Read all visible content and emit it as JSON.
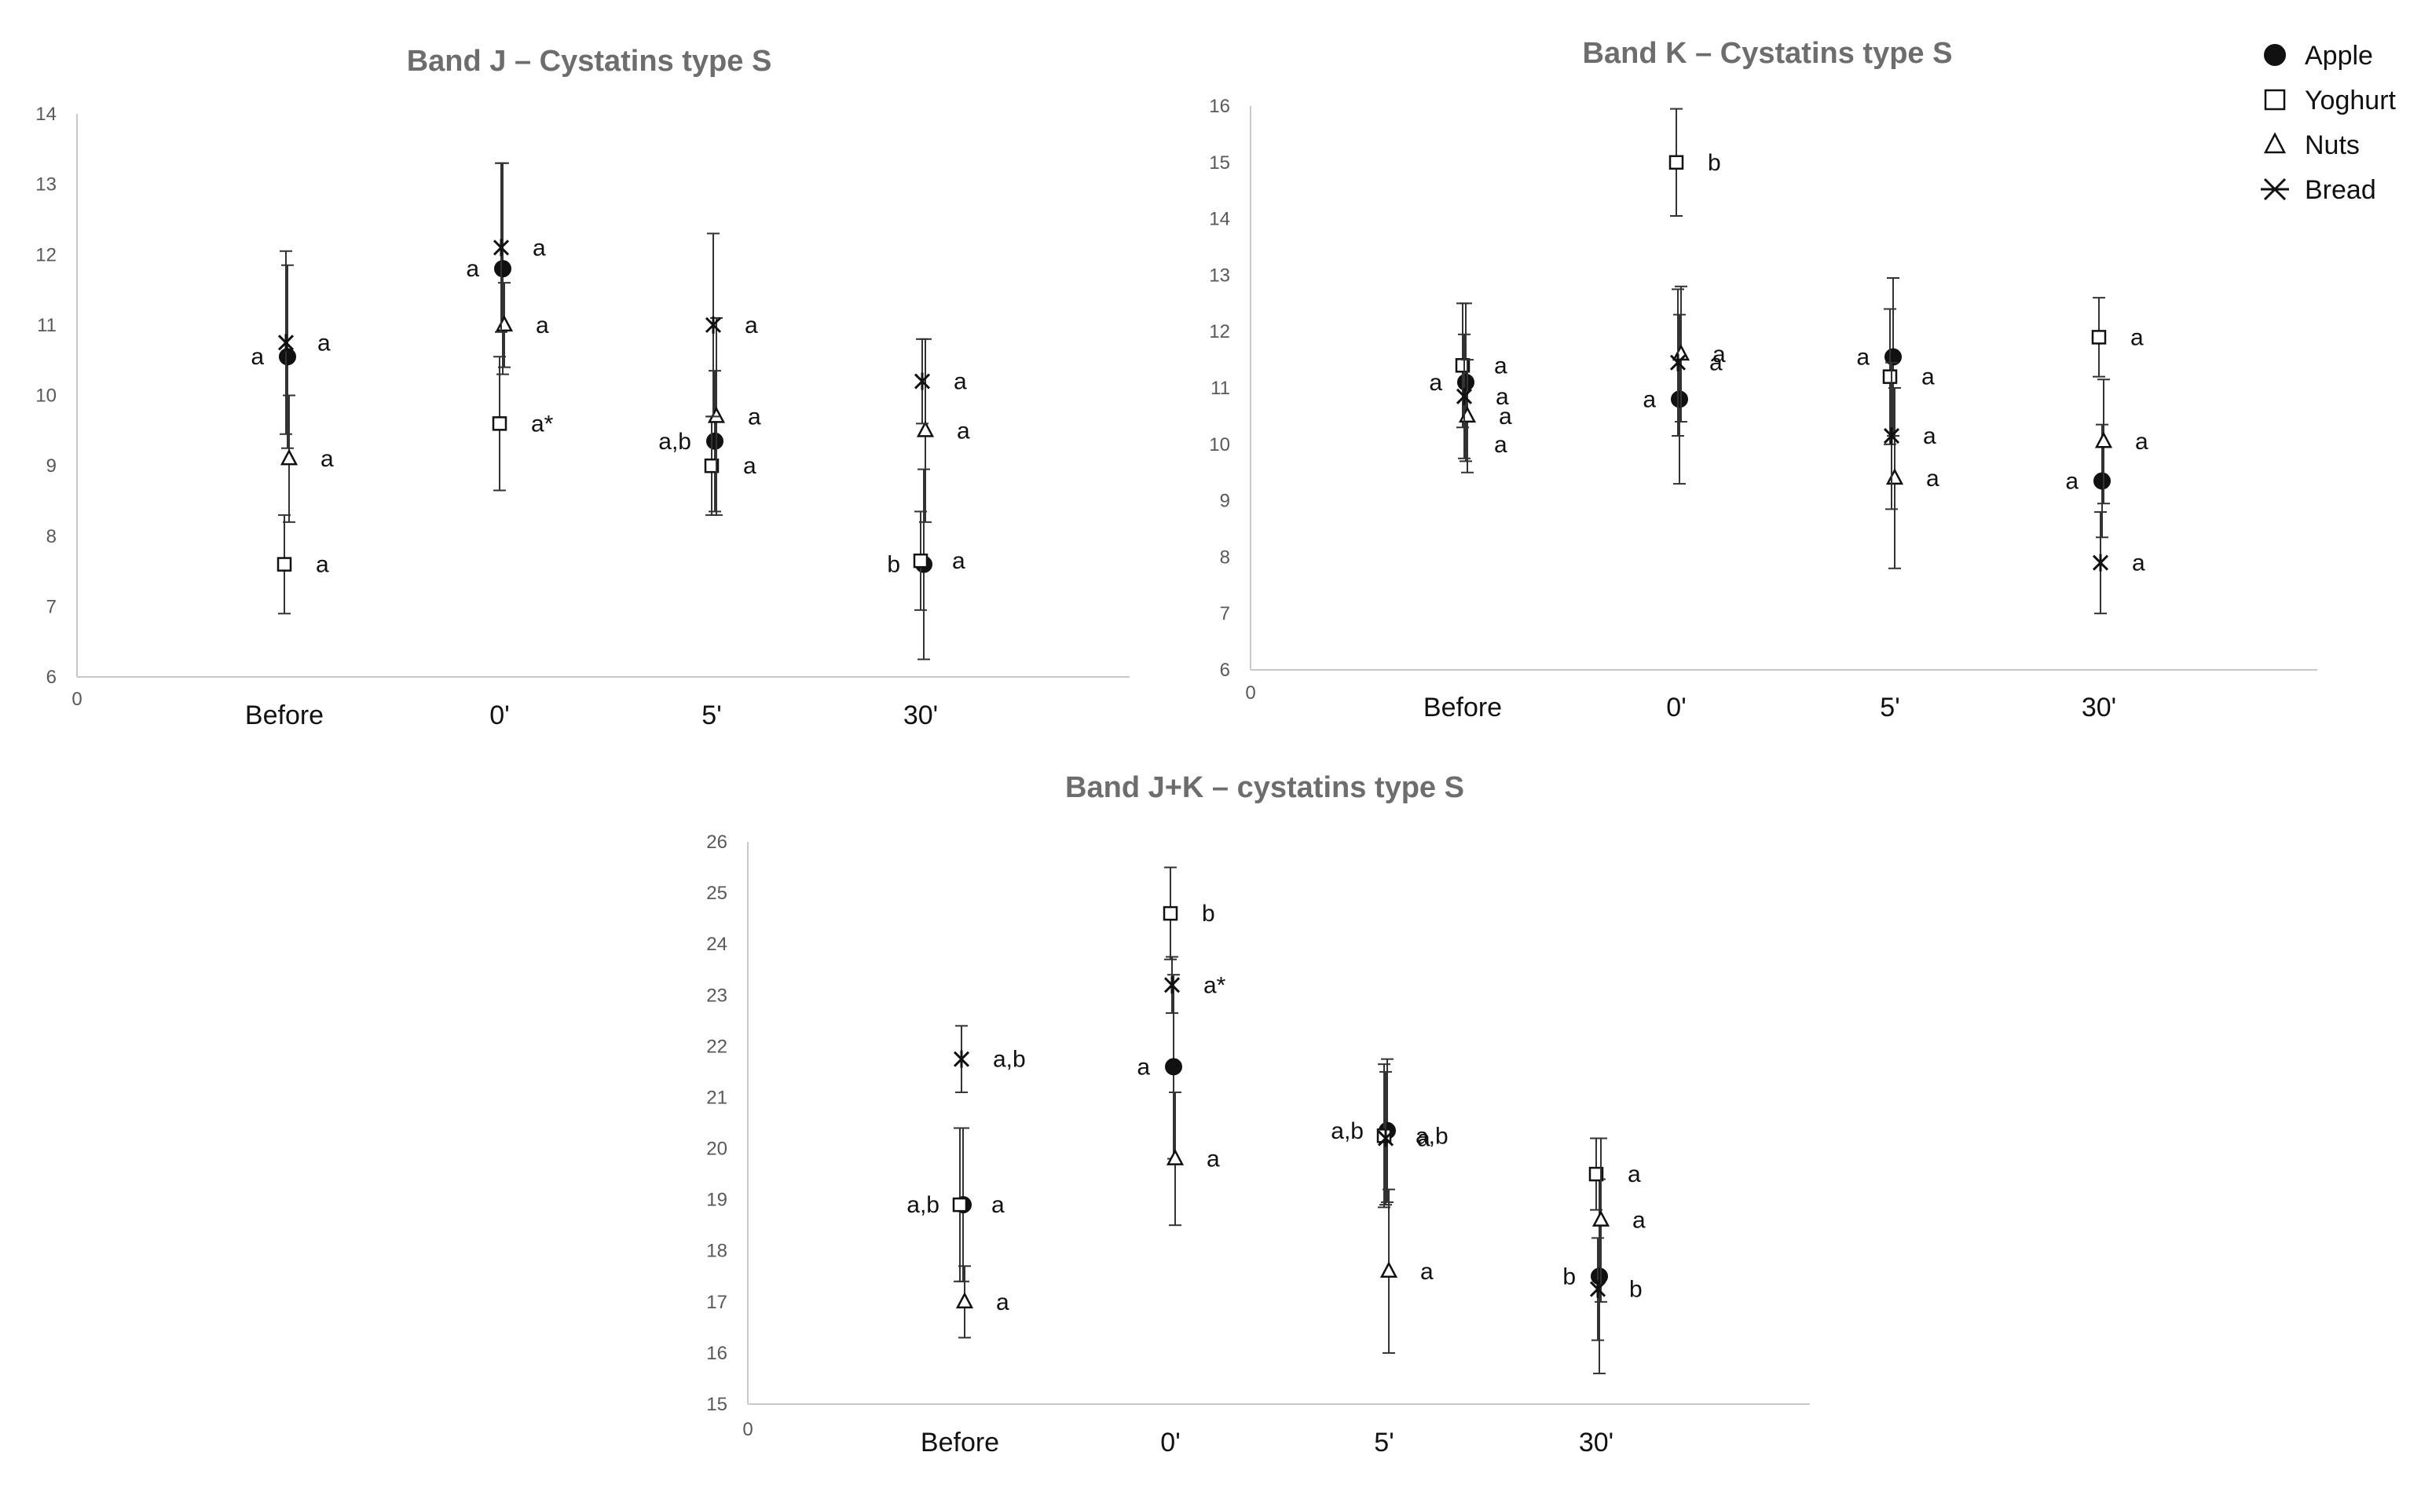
{
  "legend": {
    "items": [
      {
        "name": "Apple",
        "marker": "filled-circle"
      },
      {
        "name": "Yoghurt",
        "marker": "open-square"
      },
      {
        "name": "Nuts",
        "marker": "open-triangle"
      },
      {
        "name": "Bread",
        "marker": "cross"
      }
    ]
  },
  "chart_data": [
    {
      "type": "scatter",
      "id": "band-j",
      "title": "Band J – Cystatins type S",
      "origin_label": "0",
      "categories": [
        "Before",
        "0'",
        "5'",
        "30'"
      ],
      "ylim": [
        6,
        14
      ],
      "yticks": [
        6,
        7,
        8,
        9,
        10,
        11,
        12,
        13,
        14
      ],
      "series": [
        {
          "name": "Apple",
          "marker": "filled-circle",
          "values": [
            10.55,
            11.8,
            9.35,
            7.6
          ],
          "err": [
            1.3,
            1.5,
            1.0,
            1.35
          ],
          "labels": [
            "a",
            "a",
            "a,b",
            "b"
          ],
          "label_side": "left"
        },
        {
          "name": "Yoghurt",
          "marker": "open-square",
          "values": [
            7.6,
            9.6,
            9.0,
            7.65
          ],
          "err": [
            0.7,
            0.95,
            0.7,
            0.7
          ],
          "labels": [
            "a",
            "a*",
            "a",
            "a"
          ],
          "label_side": "right"
        },
        {
          "name": "Nuts",
          "marker": "open-triangle",
          "values": [
            9.1,
            11.0,
            9.7,
            9.5
          ],
          "err": [
            0.9,
            0.6,
            1.4,
            1.3
          ],
          "labels": [
            "a",
            "a",
            "a",
            "a"
          ],
          "label_side": "right"
        },
        {
          "name": "Bread",
          "marker": "cross",
          "values": [
            10.75,
            12.1,
            11.0,
            10.2
          ],
          "err": [
            1.3,
            1.2,
            1.3,
            0.6
          ],
          "labels": [
            "a",
            "a",
            "a",
            "a"
          ],
          "label_side": "right"
        }
      ]
    },
    {
      "type": "scatter",
      "id": "band-k",
      "title": "Band K – Cystatins type S",
      "origin_label": "0",
      "categories": [
        "Before",
        "0'",
        "5'",
        "30'"
      ],
      "ylim": [
        6,
        16
      ],
      "yticks": [
        6,
        7,
        8,
        9,
        10,
        11,
        12,
        13,
        14,
        15,
        16
      ],
      "series": [
        {
          "name": "Apple",
          "marker": "filled-circle",
          "values": [
            11.1,
            10.8,
            11.55,
            9.35
          ],
          "err": [
            1.4,
            1.5,
            1.4,
            1.0
          ],
          "labels": [
            "a",
            "a",
            "a",
            "a"
          ],
          "label_side": "left"
        },
        {
          "name": "Yoghurt",
          "marker": "open-square",
          "values": [
            11.4,
            15.0,
            11.2,
            11.9
          ],
          "err": [
            1.1,
            0.95,
            1.2,
            0.7
          ],
          "labels": [
            "a",
            "b",
            "a",
            "a"
          ],
          "label_side": "right"
        },
        {
          "name": "Nuts",
          "marker": "open-triangle",
          "values": [
            10.5,
            11.6,
            9.4,
            10.05
          ],
          "err": [
            1.0,
            1.2,
            1.6,
            1.1
          ],
          "labels": [
            "a",
            "a",
            "a",
            "a"
          ],
          "label_side": "right"
        },
        {
          "name": "Bread",
          "marker": "cross",
          "values": [
            10.85,
            11.45,
            10.15,
            7.9
          ],
          "err": [
            1.1,
            1.3,
            1.3,
            0.9
          ],
          "labels": [
            "a",
            "a",
            "a",
            "a"
          ],
          "label_side": "right"
        }
      ],
      "extra_labels": [
        {
          "category": "Before",
          "value": 10.0,
          "text": "a"
        }
      ]
    },
    {
      "type": "scatter",
      "id": "band-jk",
      "title": "Band J+K – cystatins type S",
      "origin_label": "0",
      "categories": [
        "Before",
        "0'",
        "5'",
        "30'"
      ],
      "ylim": [
        15,
        26
      ],
      "yticks": [
        15,
        16,
        17,
        18,
        19,
        20,
        21,
        22,
        23,
        24,
        25,
        26
      ],
      "series": [
        {
          "name": "Apple",
          "marker": "filled-circle",
          "values": [
            18.9,
            21.6,
            20.35,
            17.5
          ],
          "err": [
            1.5,
            1.8,
            1.4,
            1.9
          ],
          "labels": [
            "a,b",
            "a",
            "a,b",
            "b"
          ],
          "label_side": "left"
        },
        {
          "name": "Yoghurt",
          "marker": "open-square",
          "values": [
            18.9,
            24.6,
            20.25,
            19.5
          ],
          "err": [
            1.5,
            0.9,
            1.4,
            0.7
          ],
          "labels": [
            "a",
            "b",
            "a,b",
            "a"
          ],
          "label_side": "right"
        },
        {
          "name": "Nuts",
          "marker": "open-triangle",
          "values": [
            17.0,
            19.8,
            17.6,
            18.6
          ],
          "err": [
            0.7,
            1.3,
            1.6,
            1.6
          ],
          "labels": [
            "a",
            "a",
            "a",
            "a"
          ],
          "label_side": "right"
        },
        {
          "name": "Bread",
          "marker": "cross",
          "values": [
            21.75,
            23.2,
            20.2,
            17.25
          ],
          "err": [
            0.65,
            0.55,
            1.3,
            1.0
          ],
          "labels": [
            "a,b",
            "a*",
            "a",
            "b"
          ],
          "label_side": "right"
        }
      ]
    }
  ]
}
